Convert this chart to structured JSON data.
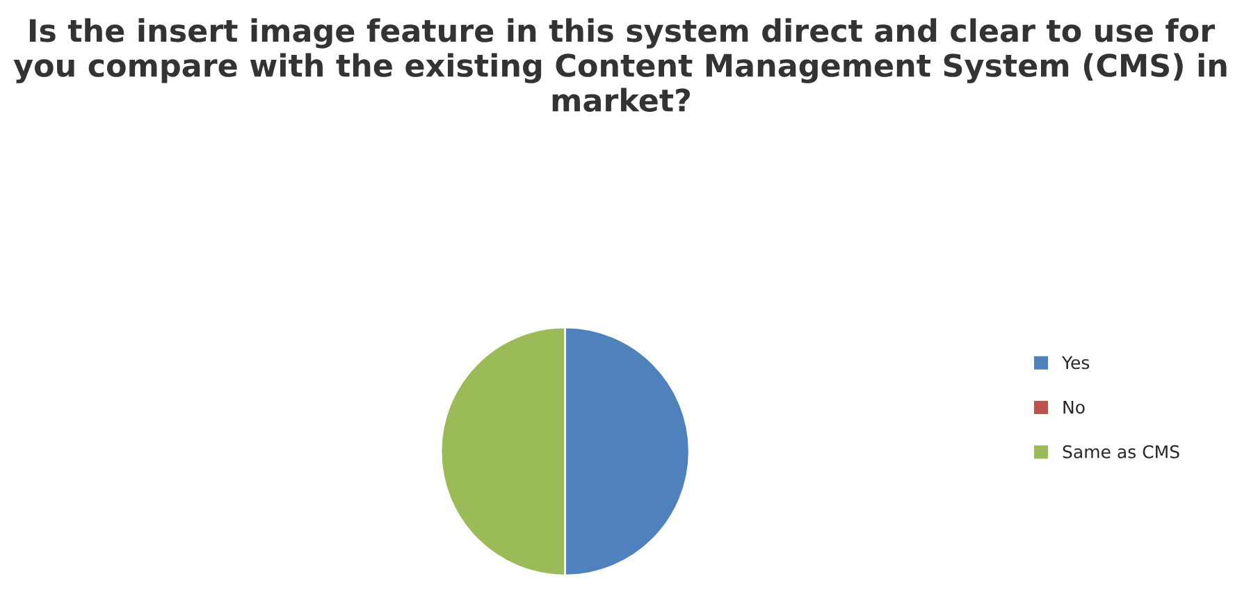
{
  "chart_data": {
    "type": "pie",
    "title": "Is the insert image feature in this system direct and clear to use for you compare with the existing Content Management System (CMS) in market?",
    "categories": [
      "Yes",
      "No",
      "Same as CMS"
    ],
    "values": [
      50,
      0,
      50
    ],
    "colors": [
      "#4f81bd",
      "#c0504d",
      "#9bbb59"
    ],
    "legend": "right"
  }
}
